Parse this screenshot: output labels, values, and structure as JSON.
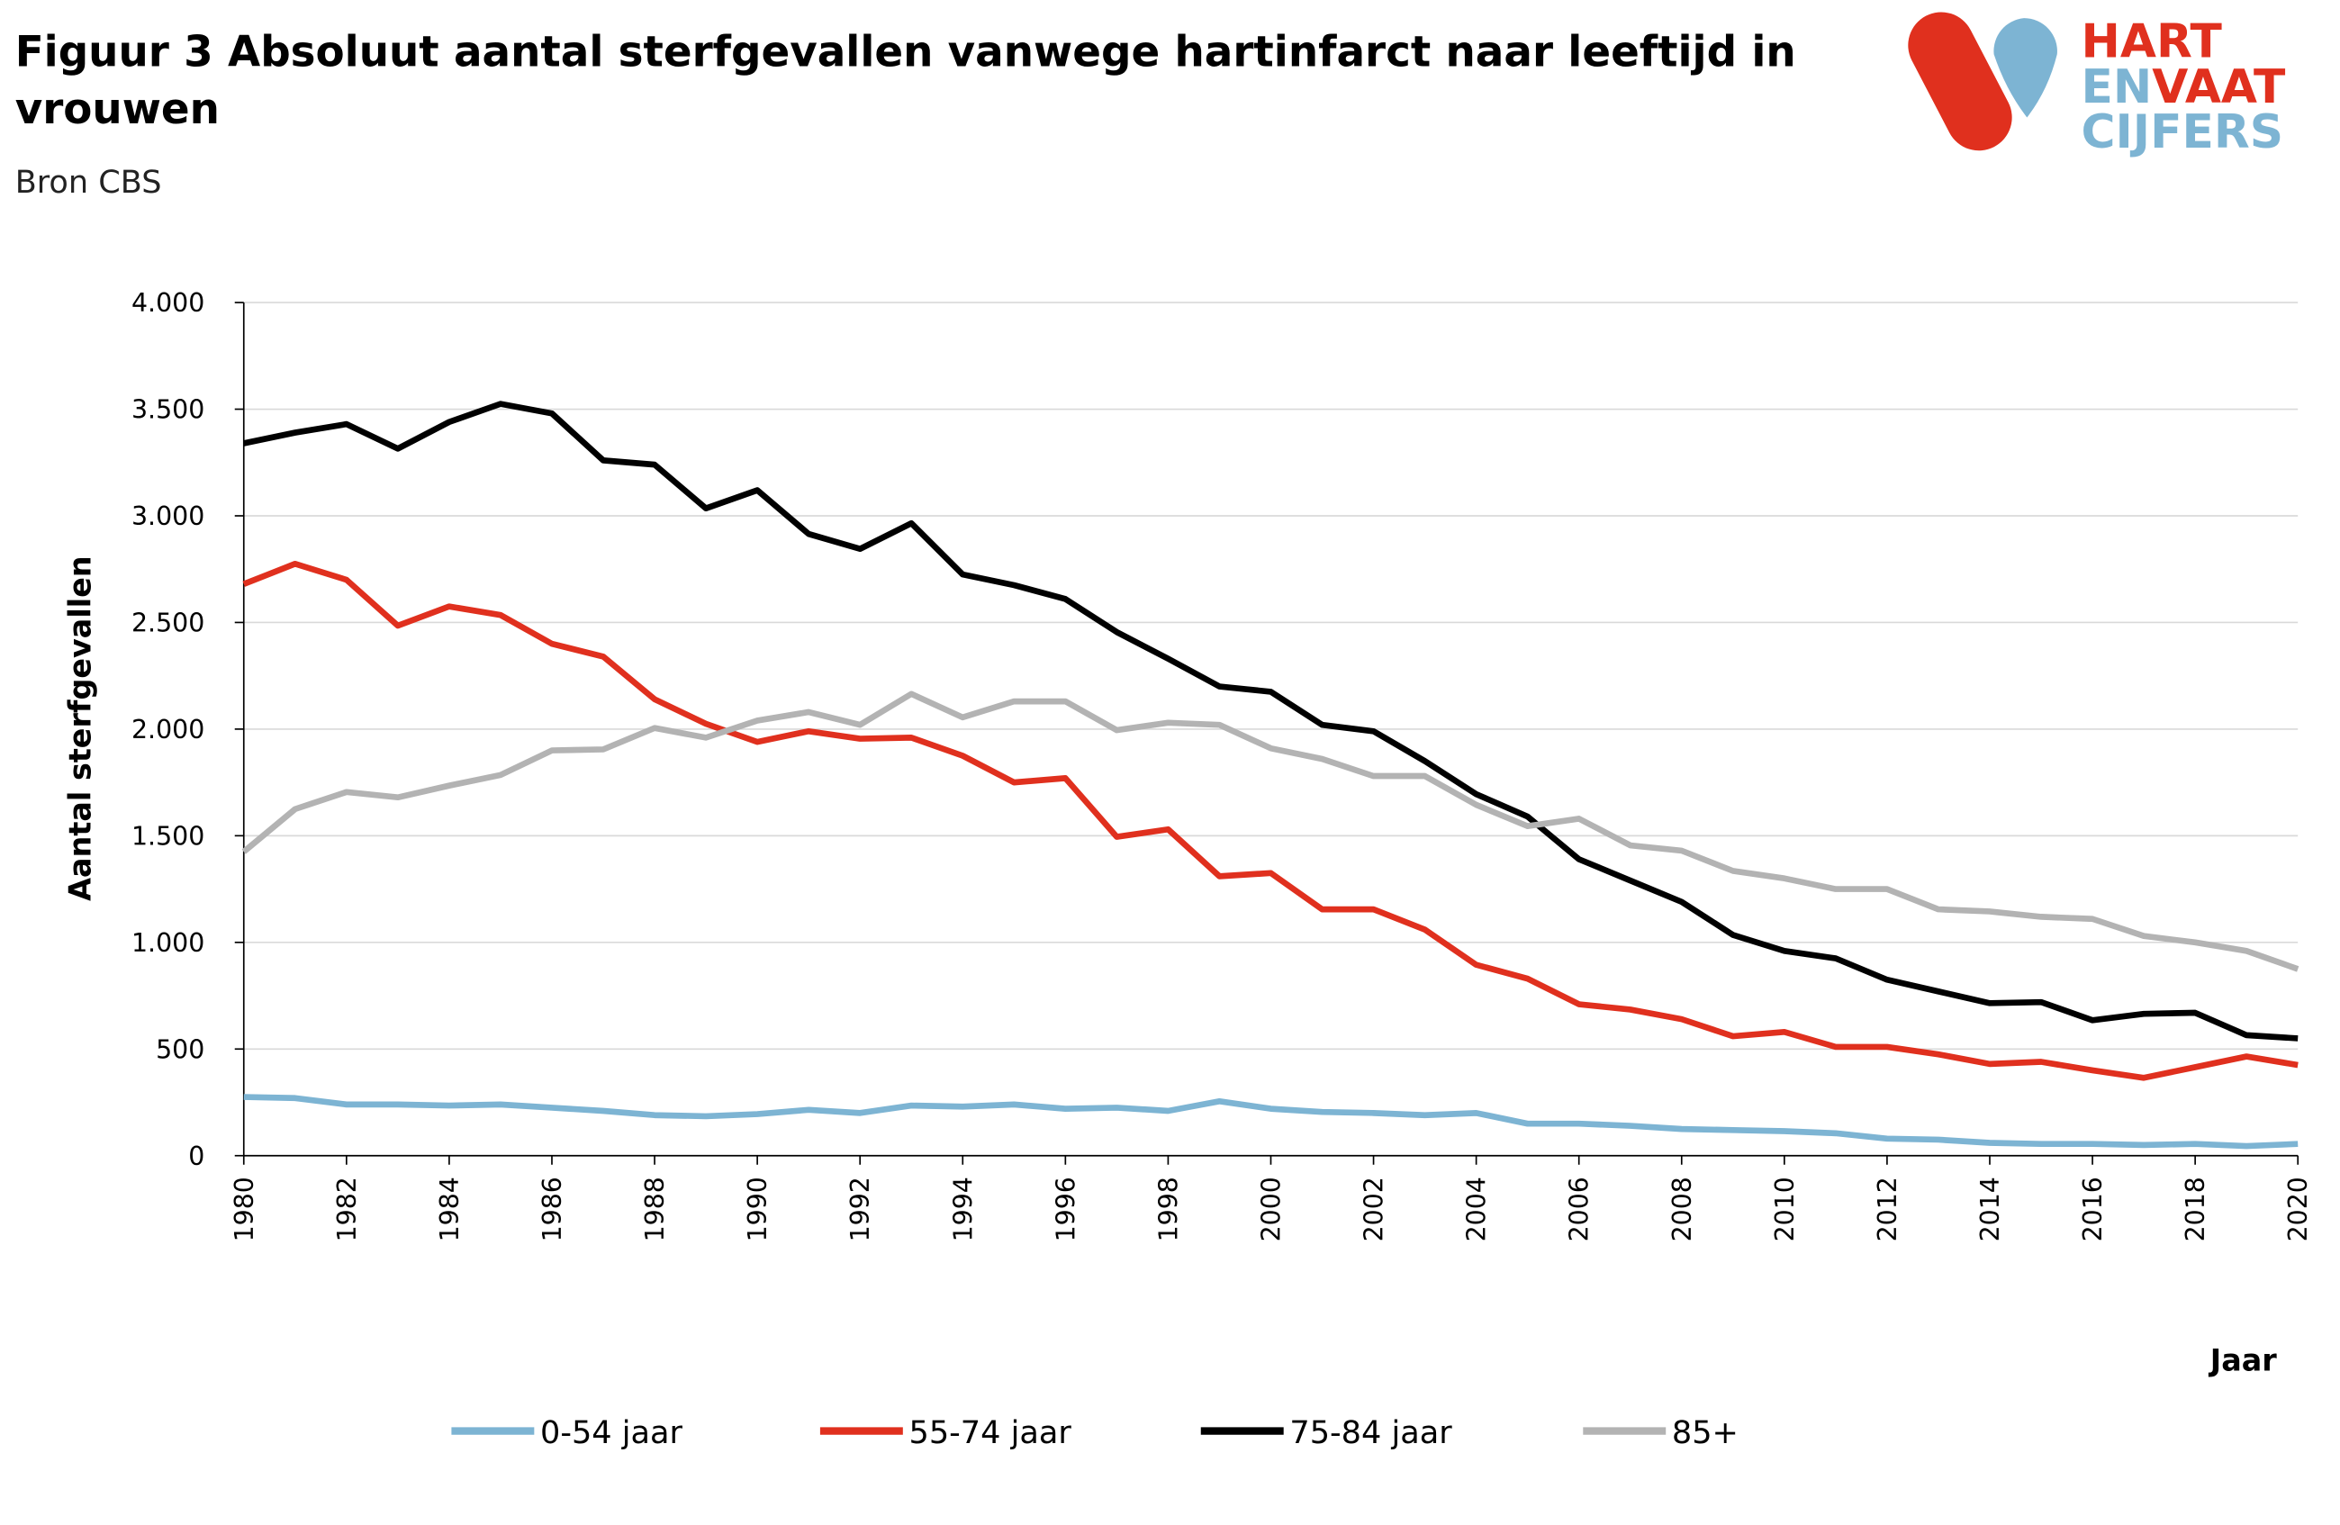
{
  "chart_data": {
    "type": "line",
    "title": "Figuur 3 Absoluut aantal sterfgevallen vanwege hartinfarct naar leeftijd in vrouwen",
    "subtitle": "Bron CBS",
    "y_label": "Aantal sterfgevallen",
    "x_label": "Jaar",
    "logo": {
      "line1": "HART",
      "line2a": "EN",
      "line2b": "VAAT",
      "line3": "CIJFERS"
    },
    "x": [
      1980,
      1981,
      1982,
      1983,
      1984,
      1985,
      1986,
      1987,
      1988,
      1989,
      1990,
      1991,
      1992,
      1993,
      1994,
      1995,
      1996,
      1997,
      1998,
      1999,
      2000,
      2001,
      2002,
      2003,
      2004,
      2005,
      2006,
      2007,
      2008,
      2009,
      2010,
      2011,
      2012,
      2013,
      2014,
      2015,
      2016,
      2017,
      2018,
      2019,
      2020
    ],
    "xlim": [
      1980,
      2020
    ],
    "xticks": [
      1980,
      1982,
      1984,
      1986,
      1988,
      1990,
      1992,
      1994,
      1996,
      1998,
      2000,
      2002,
      2004,
      2006,
      2008,
      2010,
      2012,
      2014,
      2016,
      2018,
      2020
    ],
    "ylim": [
      0,
      4000
    ],
    "yticks": [
      0,
      500,
      {
        "value": 1000,
        "label": "1.000"
      },
      {
        "value": 1500,
        "label": "1.500"
      },
      {
        "value": 2000,
        "label": "2.000"
      },
      {
        "value": 2500,
        "label": "2.500"
      },
      {
        "value": 3000,
        "label": "3.000"
      },
      {
        "value": 3500,
        "label": "3.500"
      },
      {
        "value": 4000,
        "label": "4.000"
      }
    ],
    "grid": true,
    "legend": "bottom",
    "series": [
      {
        "name": "0-54 jaar",
        "color": "#7db4d3",
        "values": [
          275,
          270,
          240,
          240,
          235,
          240,
          225,
          210,
          190,
          185,
          195,
          215,
          200,
          235,
          230,
          240,
          220,
          225,
          210,
          255,
          220,
          205,
          200,
          190,
          200,
          150,
          150,
          140,
          125,
          120,
          115,
          105,
          80,
          75,
          60,
          55,
          55,
          50,
          55,
          45,
          55
        ]
      },
      {
        "name": "55-74 jaar",
        "color": "#e0301e",
        "values": [
          2680,
          2775,
          2700,
          2485,
          2575,
          2535,
          2400,
          2340,
          2140,
          2025,
          1940,
          1990,
          1955,
          1960,
          1875,
          1750,
          1770,
          1495,
          1530,
          1310,
          1325,
          1155,
          1155,
          1060,
          895,
          830,
          710,
          685,
          640,
          560,
          580,
          510,
          510,
          475,
          430,
          440,
          400,
          365,
          415,
          465,
          425
        ]
      },
      {
        "name": "75-84 jaar",
        "color": "#000000",
        "values": [
          3340,
          3390,
          3430,
          3315,
          3440,
          3525,
          3480,
          3260,
          3240,
          3035,
          3120,
          2915,
          2845,
          2965,
          2725,
          2675,
          2610,
          2455,
          2330,
          2200,
          2175,
          2020,
          1990,
          1850,
          1695,
          1590,
          1390,
          1290,
          1190,
          1035,
          960,
          925,
          825,
          770,
          715,
          720,
          635,
          665,
          670,
          565,
          550
        ]
      },
      {
        "name": "85+",
        "color": "#b3b3b3",
        "values": [
          1425,
          1625,
          1705,
          1680,
          1735,
          1785,
          1900,
          1905,
          2005,
          1960,
          2040,
          2080,
          2020,
          2165,
          2055,
          2130,
          2130,
          1995,
          2030,
          2020,
          1910,
          1860,
          1780,
          1780,
          1645,
          1545,
          1580,
          1455,
          1430,
          1335,
          1300,
          1250,
          1250,
          1155,
          1145,
          1120,
          1110,
          1030,
          1000,
          960,
          875
        ]
      }
    ]
  }
}
